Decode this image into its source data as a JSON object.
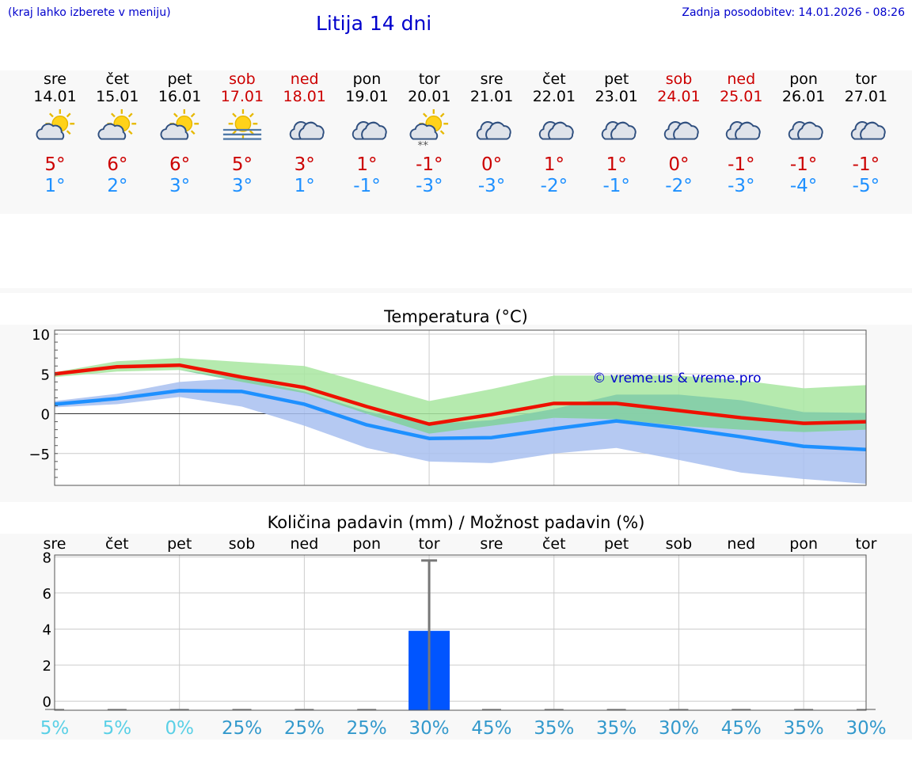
{
  "header": {
    "hint": "(kraj lahko izberete v meniju)",
    "title": "Litija 14 dni",
    "updated": "Zadnja posodobitev: 14.01.2026 - 08:26"
  },
  "days": [
    {
      "name": "sre",
      "date": "14.01",
      "icon": "sun-cloud-icon",
      "max": "5°",
      "min": "1°",
      "weekend": false
    },
    {
      "name": "čet",
      "date": "15.01",
      "icon": "sun-cloud-icon",
      "max": "6°",
      "min": "2°",
      "weekend": false
    },
    {
      "name": "pet",
      "date": "16.01",
      "icon": "sun-cloud-icon",
      "max": "6°",
      "min": "3°",
      "weekend": false
    },
    {
      "name": "sob",
      "date": "17.01",
      "icon": "sun-fog-icon",
      "max": "5°",
      "min": "3°",
      "weekend": true
    },
    {
      "name": "ned",
      "date": "18.01",
      "icon": "cloud-icon",
      "max": "3°",
      "min": "1°",
      "weekend": true
    },
    {
      "name": "pon",
      "date": "19.01",
      "icon": "cloud-icon",
      "max": "1°",
      "min": "-1°",
      "weekend": false
    },
    {
      "name": "tor",
      "date": "20.01",
      "icon": "sun-cloud-snow-icon",
      "max": "-1°",
      "min": "-3°",
      "weekend": false
    },
    {
      "name": "sre",
      "date": "21.01",
      "icon": "cloud-icon",
      "max": "0°",
      "min": "-3°",
      "weekend": false
    },
    {
      "name": "čet",
      "date": "22.01",
      "icon": "cloud-icon",
      "max": "1°",
      "min": "-2°",
      "weekend": false
    },
    {
      "name": "pet",
      "date": "23.01",
      "icon": "cloud-icon",
      "max": "1°",
      "min": "-1°",
      "weekend": false
    },
    {
      "name": "sob",
      "date": "24.01",
      "icon": "cloud-icon",
      "max": "0°",
      "min": "-2°",
      "weekend": true
    },
    {
      "name": "ned",
      "date": "25.01",
      "icon": "cloud-icon",
      "max": "-1°",
      "min": "-3°",
      "weekend": true
    },
    {
      "name": "pon",
      "date": "26.01",
      "icon": "cloud-icon",
      "max": "-1°",
      "min": "-4°",
      "weekend": false
    },
    {
      "name": "tor",
      "date": "27.01",
      "icon": "cloud-icon",
      "max": "-1°",
      "min": "-5°",
      "weekend": false
    }
  ],
  "colors": {
    "max_line": "#ee1100",
    "min_line": "#1e90ff",
    "max_band": "#a8e6a0",
    "min_band": "#a8c0f0",
    "overlap_band": "#7ccaa8",
    "precip_bar": "#0055ff",
    "error_bar": "#777777",
    "prob_light": "#5ad0e6",
    "prob_dark": "#3399cc",
    "title_blue": "#0000cc"
  },
  "chart_data": [
    {
      "type": "line",
      "title": "Temperatura (°C)",
      "watermark": "© vreme.us & vreme.pro",
      "x": [
        0,
        1,
        2,
        3,
        4,
        5,
        6,
        7,
        8,
        9,
        10,
        11,
        12,
        13
      ],
      "ylim": [
        -9,
        10.5
      ],
      "yticks": [
        10,
        5,
        0,
        -5
      ],
      "ytick_labels": [
        "10",
        "5",
        "0",
        "−5"
      ],
      "series": [
        {
          "name": "max",
          "values": [
            5.0,
            5.9,
            6.1,
            4.6,
            3.3,
            0.9,
            -1.3,
            -0.1,
            1.3,
            1.3,
            0.4,
            -0.5,
            -1.2,
            -1.0
          ],
          "band_low": [
            4.6,
            5.3,
            5.5,
            4.0,
            2.6,
            0.0,
            -2.5,
            -1.5,
            -0.5,
            -0.7,
            -1.5,
            -2.0,
            -2.3,
            -2.0
          ],
          "band_high": [
            5.2,
            6.6,
            7.0,
            6.5,
            6.0,
            3.8,
            1.6,
            3.1,
            4.8,
            4.8,
            4.8,
            4.2,
            3.2,
            3.6
          ]
        },
        {
          "name": "min",
          "values": [
            1.2,
            1.9,
            2.9,
            2.8,
            1.2,
            -1.4,
            -3.1,
            -3.0,
            -1.9,
            -0.9,
            -1.8,
            -2.9,
            -4.1,
            -4.5
          ],
          "band_low": [
            0.8,
            1.2,
            2.1,
            0.9,
            -1.5,
            -4.3,
            -6.0,
            -6.2,
            -5.0,
            -4.3,
            -5.8,
            -7.4,
            -8.2,
            -8.8
          ],
          "band_high": [
            1.6,
            2.5,
            4.0,
            4.5,
            2.8,
            0.3,
            -1.3,
            -0.8,
            0.6,
            2.4,
            2.4,
            1.7,
            0.2,
            0.1
          ]
        }
      ]
    },
    {
      "type": "bar",
      "title": "Količina padavin (mm) / Možnost padavin (%)",
      "categories": [
        "sre",
        "čet",
        "pet",
        "sob",
        "ned",
        "pon",
        "tor",
        "sre",
        "čet",
        "pet",
        "sob",
        "ned",
        "pon",
        "tor"
      ],
      "values": [
        0,
        0,
        0,
        0,
        0,
        0,
        3.9,
        0,
        0,
        0,
        0,
        0,
        0,
        0
      ],
      "error_high": [
        0,
        0,
        0,
        0,
        0,
        0,
        7.8,
        0,
        0,
        0,
        0,
        0,
        0,
        0
      ],
      "ylim": [
        -0.5,
        8.1
      ],
      "yticks": [
        8,
        6,
        4,
        2,
        0
      ],
      "ytick_labels": [
        "8",
        "6",
        "4",
        "2",
        "0"
      ],
      "probability_labels": [
        "5%",
        "5%",
        "0%",
        "25%",
        "25%",
        "25%",
        "30%",
        "45%",
        "35%",
        "35%",
        "30%",
        "45%",
        "35%",
        "30%"
      ]
    }
  ]
}
